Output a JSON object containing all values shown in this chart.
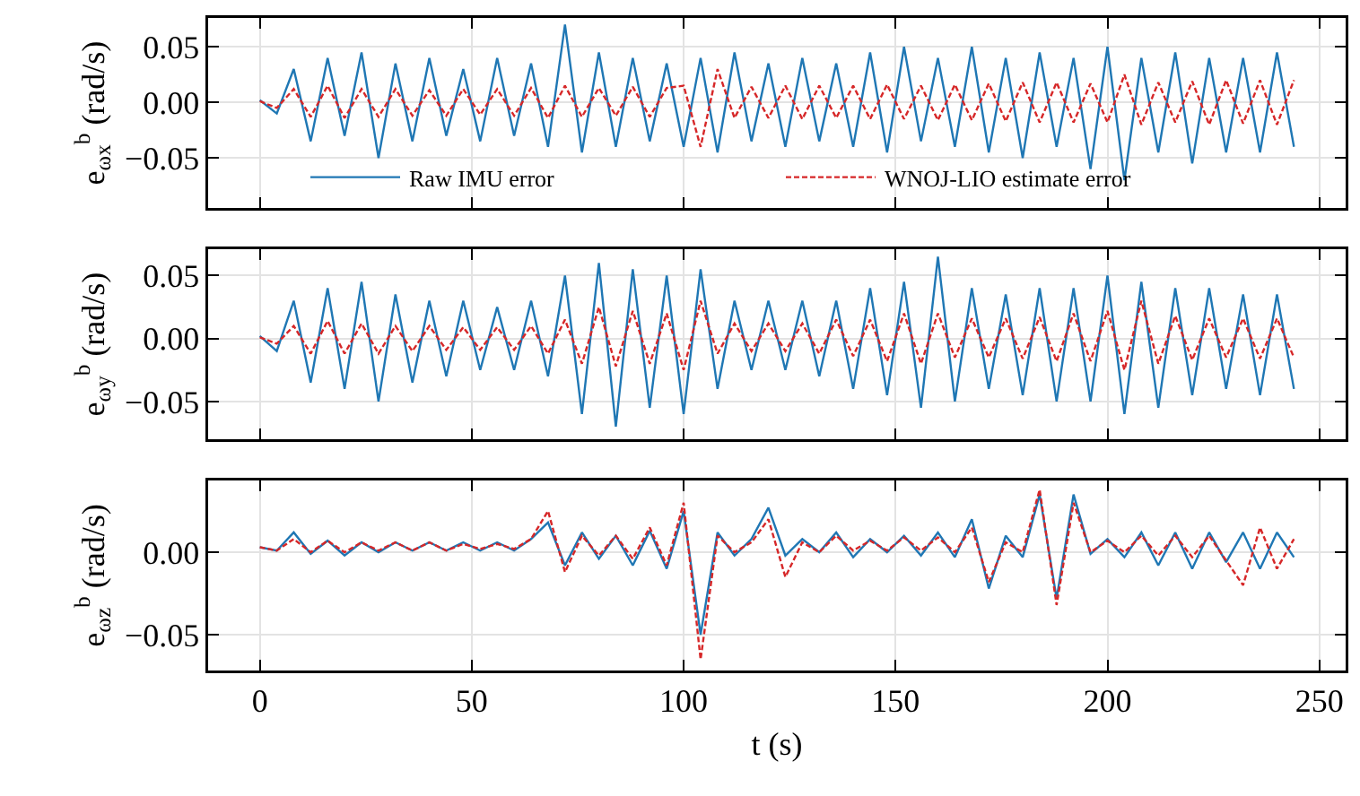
{
  "chart_data": [
    {
      "type": "line",
      "ylabel": "e$_{ωx}$$^{b}$ (rad/s)",
      "xlim": [
        -12.2,
        256.2
      ],
      "ylim": [
        -0.095,
        0.076
      ],
      "yticks": [
        {
          "value": -0.05,
          "label": "−0.05"
        },
        {
          "value": 0,
          "label": "0.00"
        },
        {
          "value": 0.05,
          "label": "0.05"
        }
      ],
      "xticks": [
        {
          "value": 0,
          "label": null
        },
        {
          "value": 50,
          "label": null
        },
        {
          "value": 100,
          "label": null
        },
        {
          "value": 150,
          "label": null
        },
        {
          "value": 200,
          "label": null
        },
        {
          "value": 250,
          "label": null
        }
      ],
      "tick_labels": "y",
      "grid": true,
      "legend": "bottom",
      "marker": "none",
      "x": [
        0,
        4,
        8,
        12,
        16,
        20,
        24,
        28,
        32,
        36,
        40,
        44,
        48,
        52,
        56,
        60,
        64,
        68,
        72,
        76,
        80,
        84,
        88,
        92,
        96,
        100,
        104,
        108,
        112,
        116,
        120,
        124,
        128,
        132,
        136,
        140,
        144,
        148,
        152,
        156,
        160,
        164,
        168,
        172,
        176,
        180,
        184,
        188,
        192,
        196,
        200,
        204,
        208,
        212,
        216,
        220,
        224,
        228,
        232,
        236,
        240,
        244
      ],
      "series": [
        {
          "name": "Raw IMU error",
          "color": "#1f77b4",
          "line_style": "solid",
          "values": [
            0.002,
            -0.01,
            0.03,
            -0.035,
            0.04,
            -0.03,
            0.045,
            -0.05,
            0.035,
            -0.035,
            0.04,
            -0.03,
            0.03,
            -0.035,
            0.04,
            -0.03,
            0.035,
            -0.04,
            0.07,
            -0.045,
            0.045,
            -0.04,
            0.04,
            -0.035,
            0.035,
            -0.04,
            0.04,
            -0.045,
            0.045,
            -0.035,
            0.035,
            -0.04,
            0.04,
            -0.035,
            0.035,
            -0.04,
            0.045,
            -0.045,
            0.05,
            -0.035,
            0.04,
            -0.04,
            0.05,
            -0.045,
            0.04,
            -0.05,
            0.045,
            -0.04,
            0.04,
            -0.06,
            0.05,
            -0.07,
            0.04,
            -0.045,
            0.045,
            -0.055,
            0.04,
            -0.045,
            0.04,
            -0.045,
            0.045,
            -0.04
          ]
        },
        {
          "name": "WNOJ-LIO estimate error",
          "color": "#d62728",
          "line_style": "dashed",
          "values": [
            0.001,
            -0.005,
            0.012,
            -0.013,
            0.015,
            -0.014,
            0.012,
            -0.013,
            0.012,
            -0.012,
            0.011,
            -0.012,
            0.012,
            -0.011,
            0.012,
            -0.012,
            0.013,
            -0.014,
            0.015,
            -0.013,
            0.013,
            -0.012,
            0.014,
            -0.013,
            0.013,
            0.015,
            -0.04,
            0.03,
            -0.014,
            0.014,
            -0.014,
            0.015,
            -0.015,
            0.015,
            -0.014,
            0.015,
            -0.015,
            0.016,
            -0.015,
            0.015,
            -0.016,
            0.016,
            -0.016,
            0.017,
            -0.017,
            0.018,
            -0.018,
            0.018,
            -0.018,
            0.017,
            -0.018,
            0.025,
            -0.02,
            0.018,
            -0.018,
            0.019,
            -0.02,
            0.02,
            -0.019,
            0.02,
            -0.02,
            0.02
          ]
        }
      ]
    },
    {
      "type": "line",
      "ylabel": "e$_{ωy}$$^{b}$ (rad/s)",
      "xlim": [
        -12.2,
        256.2
      ],
      "ylim": [
        -0.08,
        0.071
      ],
      "yticks": [
        {
          "value": -0.05,
          "label": "−0.05"
        },
        {
          "value": 0,
          "label": "0.00"
        },
        {
          "value": 0.05,
          "label": "0.05"
        }
      ],
      "xticks": [
        {
          "value": 0,
          "label": null
        },
        {
          "value": 50,
          "label": null
        },
        {
          "value": 100,
          "label": null
        },
        {
          "value": 150,
          "label": null
        },
        {
          "value": 200,
          "label": null
        },
        {
          "value": 250,
          "label": null
        }
      ],
      "tick_labels": "y",
      "grid": true,
      "marker": "none",
      "x": [
        0,
        4,
        8,
        12,
        16,
        20,
        24,
        28,
        32,
        36,
        40,
        44,
        48,
        52,
        56,
        60,
        64,
        68,
        72,
        76,
        80,
        84,
        88,
        92,
        96,
        100,
        104,
        108,
        112,
        116,
        120,
        124,
        128,
        132,
        136,
        140,
        144,
        148,
        152,
        156,
        160,
        164,
        168,
        172,
        176,
        180,
        184,
        188,
        192,
        196,
        200,
        204,
        208,
        212,
        216,
        220,
        224,
        228,
        232,
        236,
        240,
        244
      ],
      "series": [
        {
          "color": "#1f77b4",
          "line_style": "solid",
          "values": [
            0.002,
            -0.01,
            0.03,
            -0.035,
            0.04,
            -0.04,
            0.045,
            -0.05,
            0.035,
            -0.035,
            0.03,
            -0.03,
            0.03,
            -0.025,
            0.025,
            -0.025,
            0.03,
            -0.03,
            0.05,
            -0.06,
            0.06,
            -0.07,
            0.055,
            -0.055,
            0.05,
            -0.06,
            0.055,
            -0.04,
            0.03,
            -0.025,
            0.03,
            -0.025,
            0.03,
            -0.03,
            0.03,
            -0.04,
            0.04,
            -0.045,
            0.045,
            -0.055,
            0.065,
            -0.05,
            0.04,
            -0.04,
            0.035,
            -0.045,
            0.04,
            -0.05,
            0.04,
            -0.05,
            0.05,
            -0.06,
            0.045,
            -0.055,
            0.04,
            -0.045,
            0.04,
            -0.04,
            0.035,
            -0.045,
            0.035,
            -0.04
          ]
        },
        {
          "color": "#d62728",
          "line_style": "dashed",
          "values": [
            0.001,
            -0.004,
            0.01,
            -0.012,
            0.014,
            -0.012,
            0.012,
            -0.012,
            0.01,
            -0.01,
            0.01,
            -0.009,
            0.009,
            -0.009,
            0.009,
            -0.009,
            0.01,
            -0.012,
            0.015,
            -0.02,
            0.025,
            -0.022,
            0.022,
            -0.02,
            0.02,
            -0.025,
            0.03,
            -0.012,
            0.012,
            -0.01,
            0.012,
            -0.01,
            0.012,
            -0.012,
            0.015,
            -0.014,
            0.015,
            -0.018,
            0.02,
            -0.02,
            0.02,
            -0.015,
            0.016,
            -0.015,
            0.016,
            -0.016,
            0.017,
            -0.018,
            0.02,
            -0.018,
            0.022,
            -0.025,
            0.03,
            -0.02,
            0.018,
            -0.017,
            0.016,
            -0.015,
            0.016,
            -0.016,
            0.016,
            -0.015
          ]
        }
      ]
    },
    {
      "type": "line",
      "xlabel": "t (s)",
      "ylabel": "e$_{ωz}$$^{b}$ (rad/s)",
      "xlim": [
        -12.2,
        256.2
      ],
      "ylim": [
        -0.0717,
        0.0435
      ],
      "yticks": [
        {
          "value": -0.05,
          "label": "−0.05"
        },
        {
          "value": 0,
          "label": "0.00"
        }
      ],
      "xticks": [
        0,
        50,
        100,
        150,
        200,
        250
      ],
      "grid": true,
      "marker": "none",
      "x": [
        0,
        4,
        8,
        12,
        16,
        20,
        24,
        28,
        32,
        36,
        40,
        44,
        48,
        52,
        56,
        60,
        64,
        68,
        72,
        76,
        80,
        84,
        88,
        92,
        96,
        100,
        104,
        108,
        112,
        116,
        120,
        124,
        128,
        132,
        136,
        140,
        144,
        148,
        152,
        156,
        160,
        164,
        168,
        172,
        176,
        180,
        184,
        188,
        192,
        196,
        200,
        204,
        208,
        212,
        216,
        220,
        224,
        228,
        232,
        236,
        240,
        244
      ],
      "series": [
        {
          "color": "#1f77b4",
          "line_style": "solid",
          "values": [
            0.003,
            0.001,
            0.012,
            -0.001,
            0.007,
            -0.002,
            0.006,
            0,
            0.006,
            0.001,
            0.006,
            0.001,
            0.006,
            0.001,
            0.006,
            0.001,
            0.008,
            0.018,
            -0.008,
            0.012,
            -0.004,
            0.01,
            -0.008,
            0.013,
            -0.01,
            0.025,
            -0.05,
            0.012,
            -0.002,
            0.008,
            0.027,
            -0.002,
            0.008,
            0,
            0.012,
            -0.003,
            0.008,
            0,
            0.01,
            -0.002,
            0.012,
            -0.003,
            0.02,
            -0.022,
            0.01,
            -0.003,
            0.035,
            -0.028,
            0.035,
            -0.001,
            0.008,
            -0.003,
            0.012,
            -0.008,
            0.012,
            -0.01,
            0.012,
            -0.006,
            0.012,
            -0.01,
            0.012,
            -0.003
          ]
        },
        {
          "color": "#d62728",
          "line_style": "dashed",
          "values": [
            0.003,
            0.001,
            0.008,
            0,
            0.007,
            0,
            0.006,
            0.001,
            0.006,
            0.001,
            0.006,
            0.001,
            0.005,
            0.002,
            0.005,
            0.002,
            0.008,
            0.025,
            -0.012,
            0.01,
            -0.002,
            0.01,
            -0.004,
            0.015,
            -0.008,
            0.03,
            -0.065,
            0.01,
            0,
            0.006,
            0.02,
            -0.015,
            0.006,
            0,
            0.01,
            0.001,
            0.007,
            0.001,
            0.009,
            0.001,
            0.009,
            0,
            0.015,
            -0.018,
            0.006,
            0,
            0.038,
            -0.032,
            0.03,
            0,
            0.007,
            0,
            0.01,
            -0.002,
            0.01,
            -0.003,
            0.01,
            -0.005,
            -0.02,
            0.015,
            -0.01,
            0.008
          ]
        }
      ]
    }
  ]
}
